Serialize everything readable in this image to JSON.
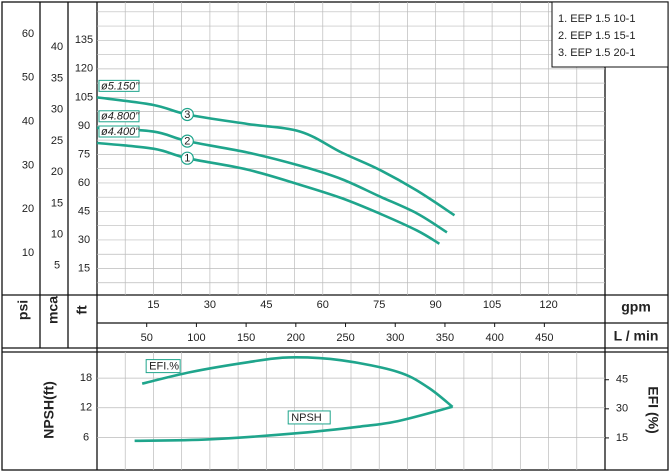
{
  "chart_data": [
    {
      "type": "line",
      "ylabel": "ft",
      "ylim": [
        0,
        152
      ],
      "yticks": [
        15,
        30,
        45,
        60,
        75,
        90,
        105,
        120,
        135
      ],
      "psi_axis": {
        "label": "psi",
        "lim": [
          0,
          65.9
        ],
        "ticks": [
          10,
          20,
          30,
          40,
          50,
          60
        ]
      },
      "mca_axis": {
        "label": "mca",
        "lim": [
          0,
          46.3
        ],
        "ticks": [
          5,
          10,
          15,
          20,
          25,
          30,
          35,
          40
        ]
      },
      "xlabel": "gpm",
      "xlim": [
        0,
        135
      ],
      "xticks": [
        15,
        30,
        45,
        60,
        75,
        90,
        105,
        120
      ],
      "x2label": "L / min",
      "x2lim": [
        0,
        511
      ],
      "x2ticks": [
        50,
        100,
        150,
        200,
        250,
        300,
        350,
        400,
        450
      ],
      "grid": true,
      "legend": "top-right",
      "series": [
        {
          "name": "1. EEP 1.5 10-1",
          "number": "1",
          "impeller": "ø4.400\"",
          "color": "#1fa58c",
          "x": [
            0,
            15,
            24,
            40,
            54,
            65,
            75,
            85,
            91
          ],
          "values": [
            81,
            78,
            73,
            67,
            59,
            52,
            44,
            35,
            28
          ]
        },
        {
          "name": "2. EEP 1.5 15-1",
          "number": "2",
          "impeller": "ø4.800\"",
          "color": "#1fa58c",
          "x": [
            0,
            15,
            24,
            40,
            54,
            65,
            75,
            85,
            93
          ],
          "values": [
            89,
            87,
            82,
            76,
            69,
            62,
            53,
            44,
            34
          ]
        },
        {
          "name": "3. EEP 1.5 20-1",
          "number": "3",
          "impeller": "ø5.150\"",
          "color": "#1fa58c",
          "x": [
            0,
            15,
            24,
            40,
            54,
            65,
            75,
            85,
            95
          ],
          "values": [
            105,
            101,
            96,
            91,
            87,
            76,
            67,
            56,
            43
          ]
        }
      ]
    },
    {
      "type": "line",
      "ylabel": "NPSH(ft)",
      "ylim": [
        0,
        23.3
      ],
      "yticks": [
        6,
        12,
        18
      ],
      "y2label": "EFI (%)",
      "y2lim": [
        0,
        59.3
      ],
      "y2ticks": [
        15,
        30,
        45
      ],
      "xlim": [
        0,
        135
      ],
      "grid": true,
      "series": [
        {
          "name": "NPSH",
          "color": "#1fa58c",
          "x": [
            10,
            30,
            54,
            70,
            80,
            94.5
          ],
          "values": [
            5.3,
            5.6,
            6.9,
            8.2,
            9.3,
            12.2
          ]
        },
        {
          "name": "EFI.%",
          "color": "#1fa58c",
          "axis": "y2",
          "x": [
            12,
            25,
            40,
            51,
            65,
            80,
            88,
            94.5
          ],
          "values": [
            43,
            49,
            54,
            56.5,
            55,
            49,
            41,
            31
          ]
        }
      ]
    }
  ]
}
